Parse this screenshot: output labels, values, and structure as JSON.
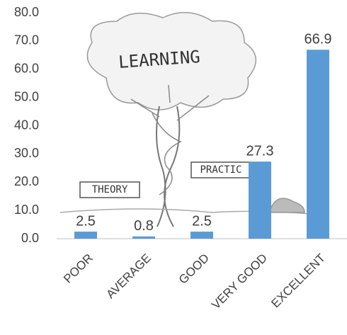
{
  "chart_data": {
    "type": "bar",
    "categories": [
      "POOR",
      "AVERAGE",
      "GOOD",
      "VERY GOOD",
      "EXCELLENT"
    ],
    "values": [
      2.5,
      0.8,
      2.5,
      27.3,
      66.9
    ],
    "color": "#5b9bd5",
    "ylim": [
      0,
      80
    ],
    "yticks": [
      {
        "value": 0,
        "label": "0.0"
      },
      {
        "value": 10,
        "label": "10.0"
      },
      {
        "value": 20,
        "label": "20.0"
      },
      {
        "value": 30,
        "label": "30.0"
      },
      {
        "value": 40,
        "label": "40.0"
      },
      {
        "value": 50,
        "label": "50.0"
      },
      {
        "value": 60,
        "label": "60.0"
      },
      {
        "value": 70,
        "label": "70.0"
      },
      {
        "value": 80,
        "label": "80.0"
      }
    ],
    "grid": false,
    "annotations": [
      "LEARNING",
      "THEORY",
      "PRACTIC"
    ]
  }
}
